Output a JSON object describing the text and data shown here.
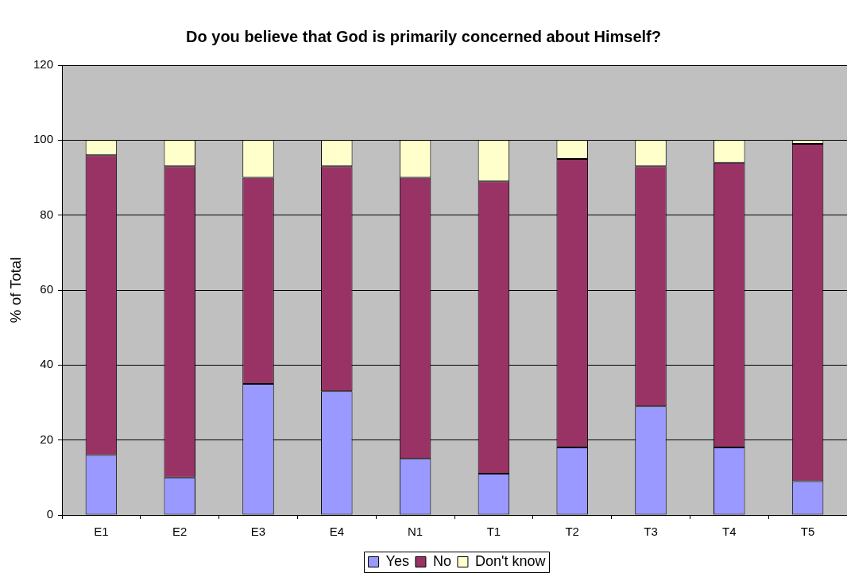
{
  "chart_data": {
    "type": "bar",
    "title": "Do you believe that God is primarily concerned about Himself?",
    "ylabel": "% of Total",
    "categories": [
      "E1",
      "E2",
      "E3",
      "E4",
      "N1",
      "T1",
      "T2",
      "T3",
      "T4",
      "T5"
    ],
    "series": [
      {
        "name": "Yes",
        "color": "#9999ff",
        "values": [
          16,
          10,
          35,
          33,
          15,
          11,
          18,
          29,
          18,
          9
        ]
      },
      {
        "name": "No",
        "color": "#993366",
        "values": [
          80,
          83,
          55,
          60,
          75,
          78,
          77,
          64,
          76,
          90
        ]
      },
      {
        "name": "Don't know",
        "color": "#ffffcc",
        "values": [
          4,
          7,
          10,
          7,
          10,
          11,
          5,
          7,
          6,
          1
        ]
      }
    ],
    "stacked": true,
    "ylim": [
      0,
      120
    ],
    "yticks": [
      0,
      20,
      40,
      60,
      80,
      100,
      120
    ],
    "grid": "y",
    "legend": "bottom"
  }
}
